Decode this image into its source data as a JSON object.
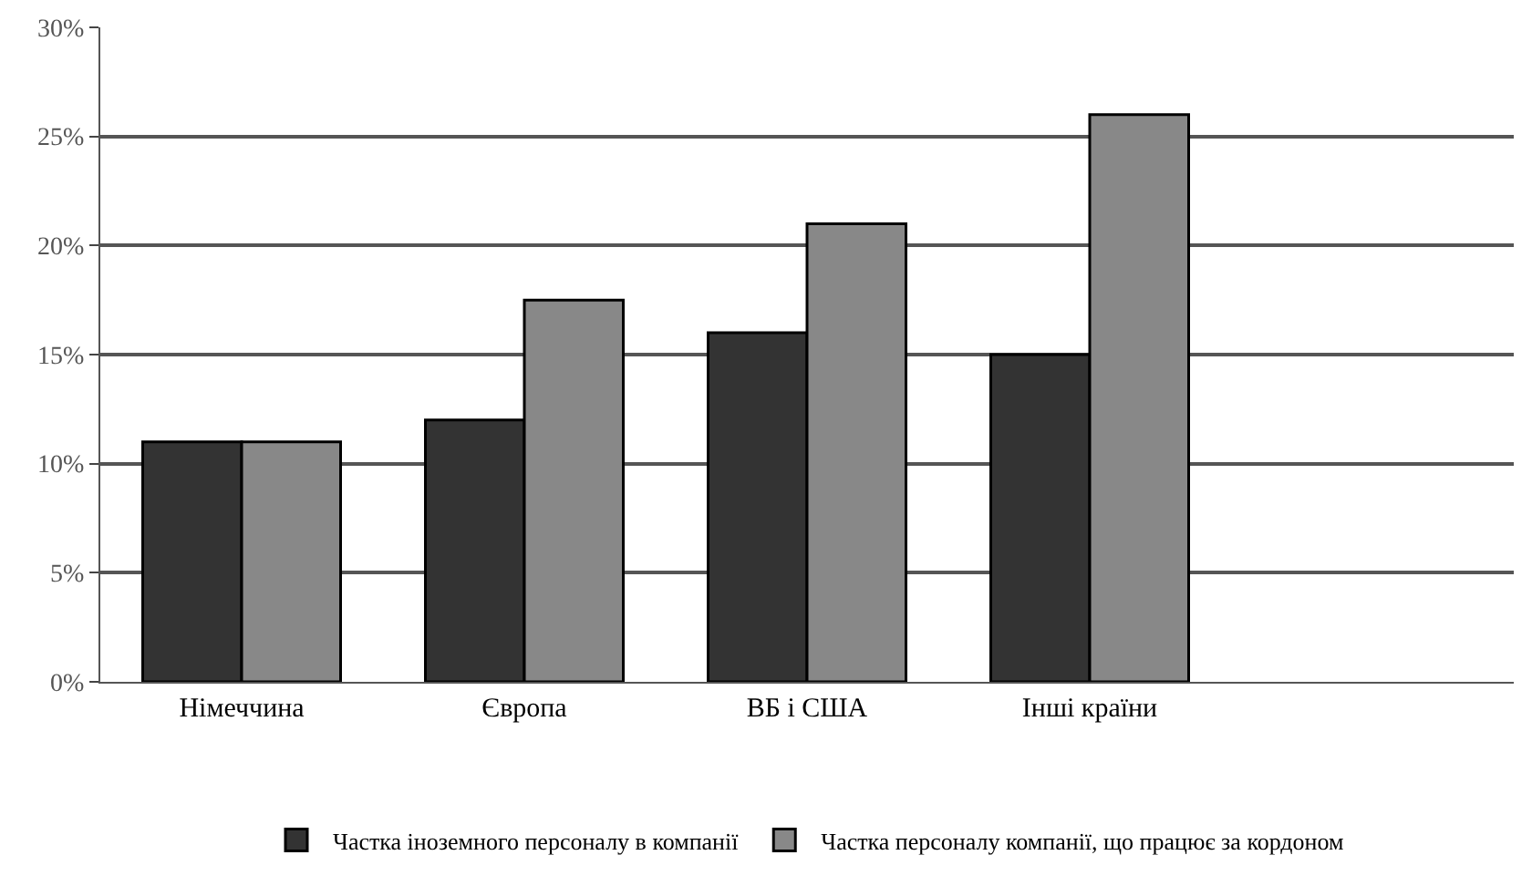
{
  "chart_data": {
    "type": "bar",
    "categories": [
      "Німеччина",
      "Європа",
      "ВБ і США",
      "Інші країни",
      null
    ],
    "series": [
      {
        "name": "Частка іноземного персоналу в компанії",
        "color": "#333333",
        "values": [
          11,
          12,
          16,
          15,
          null
        ]
      },
      {
        "name": "Частка персоналу компанії, що працює за кордоном",
        "color": "#888888",
        "values": [
          11,
          17.5,
          21,
          26,
          null
        ]
      }
    ],
    "ylim": [
      0,
      30
    ],
    "yticks": [
      {
        "value": 0,
        "label": "0%"
      },
      {
        "value": 5,
        "label": "5%"
      },
      {
        "value": 10,
        "label": "10%"
      },
      {
        "value": 15,
        "label": "15%"
      },
      {
        "value": 20,
        "label": "20%"
      },
      {
        "value": 25,
        "label": "25%"
      },
      {
        "value": 30,
        "label": "30%"
      }
    ],
    "grid": "y",
    "legend": "bottom"
  }
}
